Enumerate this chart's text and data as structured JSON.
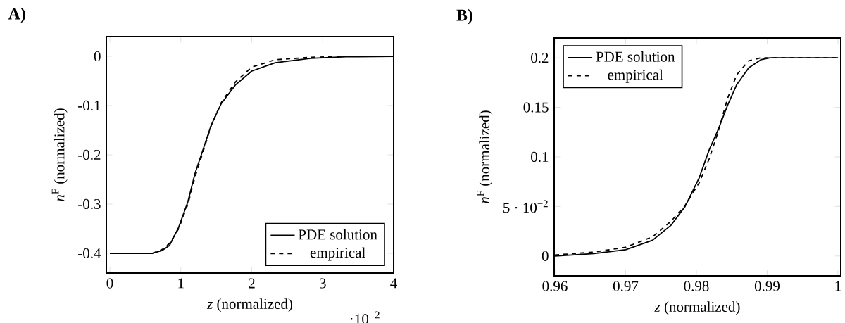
{
  "chart_data": [
    {
      "type": "line",
      "title": "A)",
      "xlabel": "*z* (normalized)",
      "ylabel": "*n*$^{F}$ (normalized)",
      "xlim": [
        -0.05,
        4
      ],
      "ylim": [
        -0.44,
        0.04
      ],
      "xticks": [
        0,
        1,
        2,
        3,
        4
      ],
      "yticks": [
        -0.4,
        -0.3,
        -0.2,
        -0.1,
        0
      ],
      "legend": "bottom right",
      "annotations": [
        "·10$^{−2}$"
      ],
      "series": [
        {
          "name": "PDE solution",
          "color": "#000000",
          "line_style": "solid",
          "x": [
            0,
            0.6,
            0.74,
            0.84,
            0.97,
            1.1,
            1.2,
            1.3,
            1.43,
            1.57,
            1.77,
            2.0,
            2.33,
            2.83,
            3.33,
            4
          ],
          "values": [
            -0.4,
            -0.4,
            -0.394,
            -0.384,
            -0.347,
            -0.295,
            -0.238,
            -0.195,
            -0.139,
            -0.096,
            -0.058,
            -0.03,
            -0.013,
            -0.004,
            -0.001,
            0
          ]
        },
        {
          "name": "empirical",
          "color": "#000000",
          "line_style": "dashed",
          "x": [
            0,
            0.6,
            0.74,
            0.84,
            0.97,
            1.1,
            1.2,
            1.3,
            1.43,
            1.57,
            1.77,
            2.0,
            2.33,
            2.83,
            3.33,
            4
          ],
          "values": [
            -0.4,
            -0.4,
            -0.392,
            -0.38,
            -0.35,
            -0.3,
            -0.245,
            -0.2,
            -0.14,
            -0.094,
            -0.052,
            -0.022,
            -0.007,
            -0.002,
            0,
            0
          ]
        }
      ]
    },
    {
      "type": "line",
      "title": "B)",
      "xlabel": "*z* (normalized)",
      "ylabel": "*n*$^{F}$ (normalized)",
      "xlim": [
        0.9599,
        1.0004
      ],
      "ylim": [
        -0.02,
        0.22
      ],
      "xticks": [
        0.96,
        0.97,
        0.98,
        0.99,
        1
      ],
      "yticks": [
        0,
        {
          "value": 0.05,
          "label": "5 · 10$^{−2}$"
        },
        0.1,
        0.15,
        0.2
      ],
      "legend": "top left",
      "series": [
        {
          "name": "PDE solution",
          "color": "#000000",
          "line_style": "solid",
          "x": [
            0.96,
            0.9655,
            0.97,
            0.9738,
            0.9764,
            0.9784,
            0.9804,
            0.9818,
            0.9831,
            0.9844,
            0.9857,
            0.9874,
            0.9891,
            0.9904,
            1
          ],
          "values": [
            0,
            0.0024,
            0.0064,
            0.0159,
            0.031,
            0.05,
            0.079,
            0.107,
            0.128,
            0.152,
            0.173,
            0.19,
            0.198,
            0.2,
            0.2
          ]
        },
        {
          "name": "empirical",
          "color": "#000000",
          "line_style": "dashed",
          "x": [
            0.96,
            0.9655,
            0.97,
            0.9738,
            0.9764,
            0.9784,
            0.9804,
            0.9818,
            0.9831,
            0.9844,
            0.9857,
            0.9874,
            0.9891,
            1
          ],
          "values": [
            0.001,
            0.004,
            0.0088,
            0.0194,
            0.035,
            0.051,
            0.074,
            0.098,
            0.126,
            0.159,
            0.183,
            0.197,
            0.2,
            0.2
          ]
        }
      ]
    }
  ]
}
